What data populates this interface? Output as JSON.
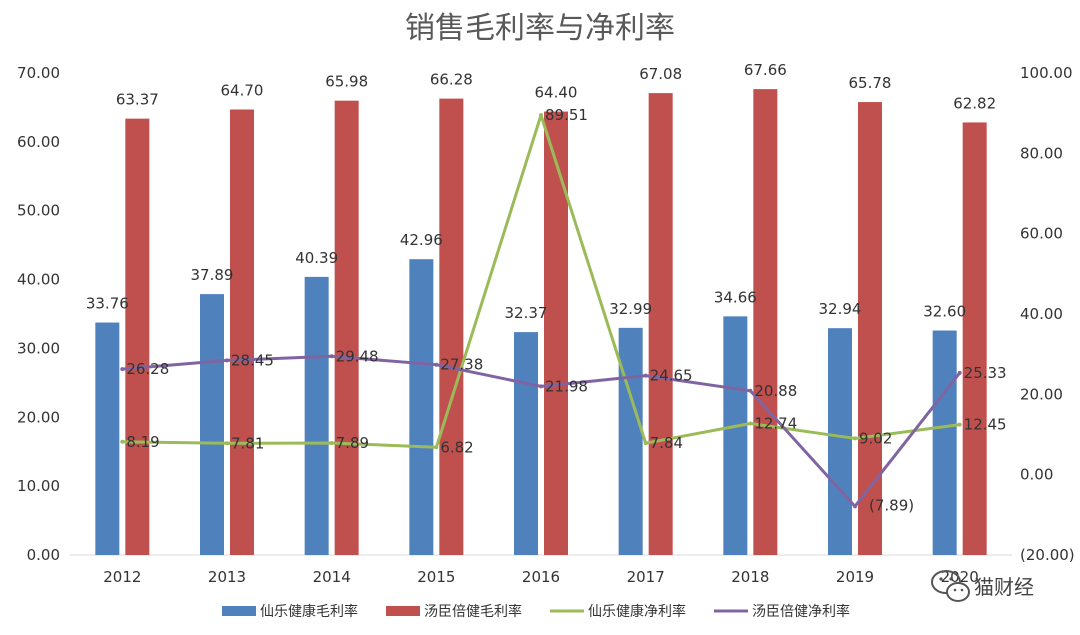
{
  "chart_data": {
    "type": "bar",
    "title": "销售毛利率与净利率",
    "categories": [
      "2012",
      "2013",
      "2014",
      "2015",
      "2016",
      "2017",
      "2018",
      "2019",
      "2020"
    ],
    "y_left": {
      "min": 0,
      "max": 70,
      "step": 10,
      "tick_labels": [
        "0.00",
        "10.00",
        "20.00",
        "30.00",
        "40.00",
        "50.00",
        "60.00",
        "70.00"
      ]
    },
    "y_right": {
      "min": -20,
      "max": 100,
      "step": 20,
      "tick_labels": [
        "(20.00)",
        "0.00",
        "20.00",
        "40.00",
        "60.00",
        "80.00",
        "100.00"
      ]
    },
    "grid": false,
    "legend_position": "bottom",
    "series": [
      {
        "name": "仙乐健康毛利率",
        "type": "bar",
        "axis": "left",
        "color": "#4F81BD",
        "values": [
          33.76,
          37.89,
          40.39,
          42.96,
          32.37,
          32.99,
          34.66,
          32.94,
          32.6
        ],
        "labels": [
          "33.76",
          "37.89",
          "40.39",
          "42.96",
          "32.37",
          "32.99",
          "34.66",
          "32.94",
          "32.60"
        ]
      },
      {
        "name": "汤臣倍健毛利率",
        "type": "bar",
        "axis": "left",
        "color": "#C0504D",
        "values": [
          63.37,
          64.7,
          65.98,
          66.28,
          64.4,
          67.08,
          67.66,
          65.78,
          62.82
        ],
        "labels": [
          "63.37",
          "64.70",
          "65.98",
          "66.28",
          "64.40",
          "67.08",
          "67.66",
          "65.78",
          "62.82"
        ]
      },
      {
        "name": "仙乐健康净利率",
        "type": "line",
        "axis": "right",
        "color": "#9BBB59",
        "values": [
          8.19,
          7.81,
          7.89,
          6.82,
          89.51,
          7.84,
          12.74,
          9.02,
          12.45
        ],
        "labels": [
          "8.19",
          "7.81",
          "7.89",
          "6.82",
          "89.51",
          "7.84",
          "12.74",
          "9.02",
          "12.45"
        ]
      },
      {
        "name": "汤臣倍健净利率",
        "type": "line",
        "axis": "right",
        "color": "#8064A2",
        "values": [
          26.28,
          28.45,
          29.48,
          27.38,
          21.98,
          24.65,
          20.88,
          -7.89,
          25.33
        ],
        "labels": [
          "26.28",
          "28.45",
          "29.48",
          "27.38",
          "21.98",
          "24.65",
          "20.88",
          "(7.89)",
          "25.33"
        ]
      }
    ],
    "negative_label_color": "#FF0000"
  },
  "watermark": {
    "text": "猫财经",
    "icon": "wechat-icon"
  }
}
